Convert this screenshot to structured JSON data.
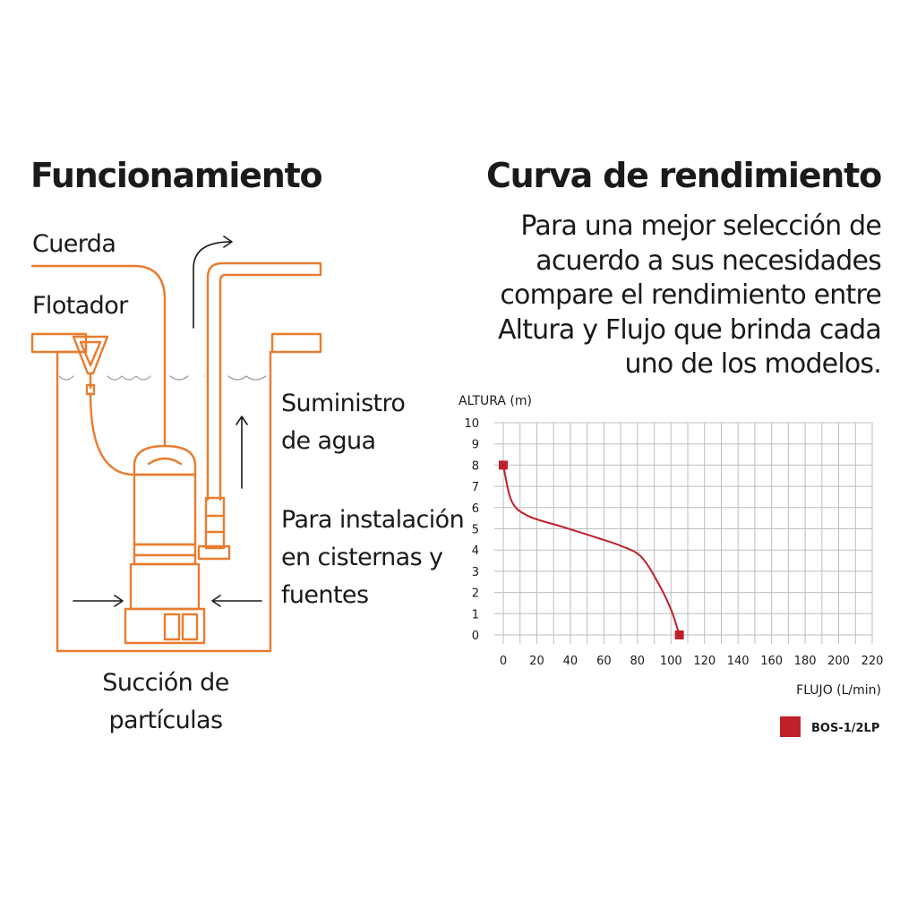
{
  "left_panel": {
    "title": "Funcionamiento",
    "labels": {
      "cuerda": "Cuerda",
      "flotador": "Flotador",
      "suministro": [
        "Suministro",
        "de agua"
      ],
      "instalacion": [
        "Para instalación",
        "en cisternas y",
        "fuentes"
      ],
      "succion": [
        "Succión de",
        "partículas"
      ]
    },
    "colors": {
      "line": "#e87c2e"
    }
  },
  "right_panel": {
    "title": "Curva de rendimiento",
    "description": [
      "Para una mejor selección de",
      "acuerdo a sus necesidades",
      "compare el rendimiento entre",
      "Altura y Flujo que brinda cada",
      "uno de los modelos."
    ]
  },
  "chart_data": {
    "type": "line",
    "title": "",
    "xlabel": "FLUJO (L/min)",
    "ylabel": "ALTURA (m)",
    "xlim": [
      0,
      220
    ],
    "ylim": [
      0,
      10
    ],
    "x_ticks": [
      "0",
      "20",
      "40",
      "60",
      "80",
      "100",
      "120",
      "140",
      "160",
      "180",
      "200",
      "220"
    ],
    "y_ticks": [
      "0",
      "1",
      "2",
      "3",
      "4",
      "5",
      "6",
      "7",
      "8",
      "9",
      "10"
    ],
    "grid": true,
    "legend_position": "bottom-right",
    "series": [
      {
        "name": "BOS-1/2LP",
        "color": "#c0202a",
        "x": [
          0,
          5,
          15,
          35,
          55,
          70,
          82,
          92,
          100,
          105
        ],
        "y": [
          8,
          6.3,
          5.6,
          5.1,
          4.6,
          4.2,
          3.7,
          2.5,
          1.2,
          0
        ]
      }
    ]
  }
}
